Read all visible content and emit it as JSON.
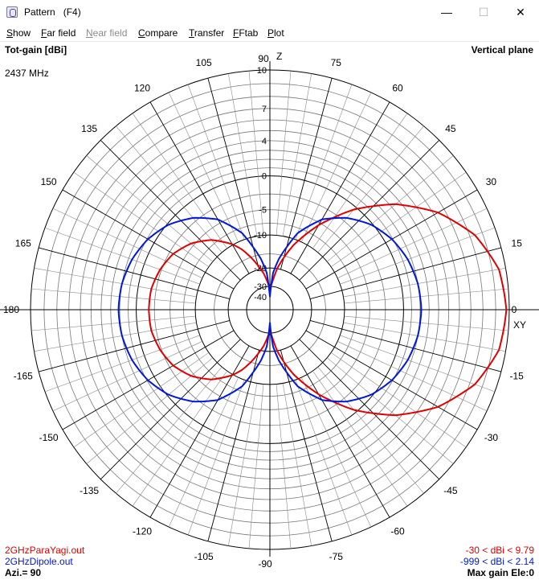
{
  "window": {
    "title": "Pattern   (F4)"
  },
  "menu": [
    {
      "label": "Show",
      "disabled": false
    },
    {
      "label": "Far field",
      "disabled": false
    },
    {
      "label": "Near field",
      "disabled": true
    },
    {
      "label": "Compare",
      "disabled": false
    },
    {
      "label": "Transfer",
      "disabled": false
    },
    {
      "label": "FFtab",
      "disabled": false
    },
    {
      "label": "Plot",
      "disabled": false
    }
  ],
  "header": {
    "quantity": "Tot-gain [dBi]",
    "plane": "Vertical plane",
    "frequency": "2437 MHz",
    "top_axis": "Z",
    "right_axis": "XY"
  },
  "radial_ticks": [
    "10",
    "7",
    "4",
    "0",
    "-5",
    "-10",
    "-20",
    "-30",
    "-40"
  ],
  "footer": {
    "file1": "2GHzParaYagi.out",
    "file2": "2GHzDipole.out",
    "range1": "-30 < dBi < 9.79",
    "range2": "-999 < dBi < 2.14",
    "azimuth": "Azi.= 90",
    "max_gain": "Max gain Ele:0"
  },
  "colors": {
    "series1": "#e00000",
    "series2": "#0018d8",
    "grid": "#000000"
  },
  "chart_data": {
    "type": "polar",
    "units": "dBi",
    "angle_labels": [
      {
        "deg": 90,
        "text": "90"
      },
      {
        "deg": 75,
        "text": "75"
      },
      {
        "deg": 60,
        "text": "60"
      },
      {
        "deg": 45,
        "text": "45"
      },
      {
        "deg": 30,
        "text": "30"
      },
      {
        "deg": 15,
        "text": "15"
      },
      {
        "deg": 0,
        "text": "0"
      },
      {
        "deg": -15,
        "text": "-15"
      },
      {
        "deg": -30,
        "text": "-30"
      },
      {
        "deg": -45,
        "text": "-45"
      },
      {
        "deg": -60,
        "text": "-60"
      },
      {
        "deg": -75,
        "text": "-75"
      },
      {
        "deg": -90,
        "text": "-90"
      },
      {
        "deg": -105,
        "text": "-105"
      },
      {
        "deg": -120,
        "text": "-120"
      },
      {
        "deg": -135,
        "text": "-135"
      },
      {
        "deg": -150,
        "text": "-150"
      },
      {
        "deg": -165,
        "text": "-165"
      },
      {
        "deg": 180,
        "text": "180"
      },
      {
        "deg": 165,
        "text": "165"
      },
      {
        "deg": 150,
        "text": "150"
      },
      {
        "deg": 135,
        "text": "135"
      },
      {
        "deg": 120,
        "text": "120"
      },
      {
        "deg": 105,
        "text": "105"
      }
    ],
    "series": [
      {
        "name": "2GHzParaYagi.out",
        "angles": [
          0,
          10,
          20,
          30,
          40,
          50,
          60,
          65,
          70,
          75,
          80,
          85,
          88,
          90,
          92,
          95,
          100,
          105,
          110,
          115,
          120,
          130,
          140,
          150,
          160,
          170,
          180
        ],
        "gain": [
          9.79,
          9.5,
          8.4,
          6.4,
          3.5,
          -0.4,
          -5.4,
          -8.4,
          -11.5,
          -15.5,
          -20,
          -27,
          -30,
          -30,
          -30,
          -27,
          -22,
          -18.5,
          -15,
          -12,
          -9.8,
          -6.6,
          -4.5,
          -3.1,
          -2.3,
          -1.8,
          -1.7
        ]
      },
      {
        "name": "2GHzDipole.out",
        "angles": [
          0,
          10,
          20,
          30,
          40,
          50,
          60,
          70,
          80,
          85,
          89,
          90
        ],
        "gain": [
          2.14,
          2.0,
          1.6,
          0.9,
          -0.2,
          -1.9,
          -4.3,
          -8.5,
          -16.4,
          -22,
          -36,
          -40
        ]
      }
    ]
  }
}
